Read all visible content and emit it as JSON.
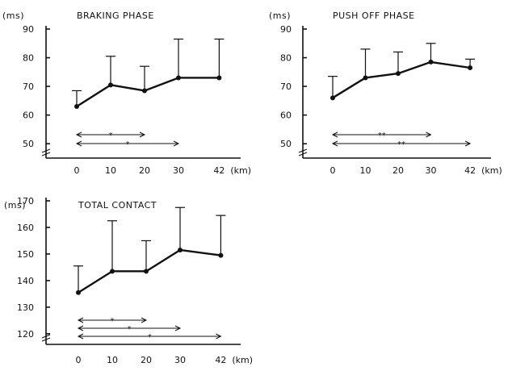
{
  "chart_data": [
    {
      "type": "line",
      "title": "BRAKING PHASE",
      "ylabel": "(ms)",
      "xunit": "(km)",
      "categories": [
        "0",
        "10",
        "20",
        "30",
        "42"
      ],
      "x": [
        0,
        10,
        20,
        30,
        42
      ],
      "values": [
        63,
        70.5,
        68.5,
        73,
        73
      ],
      "sd_upper": [
        68.5,
        80.5,
        77,
        86.5,
        86.5
      ],
      "ylim": [
        45,
        90
      ],
      "yticks": [
        "50",
        "60",
        "70",
        "80",
        "90"
      ],
      "significance": [
        {
          "from": "0",
          "to": "20",
          "mark": "*"
        },
        {
          "from": "0",
          "to": "30",
          "mark": "*"
        }
      ]
    },
    {
      "type": "line",
      "title": "PUSH OFF PHASE",
      "ylabel": "(ms)",
      "xunit": "(km)",
      "categories": [
        "0",
        "10",
        "20",
        "30",
        "42"
      ],
      "x": [
        0,
        10,
        20,
        30,
        42
      ],
      "values": [
        66,
        73,
        74.5,
        78.5,
        76.5
      ],
      "sd_upper": [
        73.5,
        83,
        82,
        85,
        79.5
      ],
      "ylim": [
        45,
        90
      ],
      "yticks": [
        "50",
        "60",
        "70",
        "80",
        "90"
      ],
      "significance": [
        {
          "from": "0",
          "to": "30",
          "mark": "**"
        },
        {
          "from": "0",
          "to": "42",
          "mark": "**"
        }
      ]
    },
    {
      "type": "line",
      "title": "TOTAL CONTACT",
      "ylabel": "(ms)",
      "xunit": "(km)",
      "categories": [
        "0",
        "10",
        "20",
        "30",
        "42"
      ],
      "x": [
        0,
        10,
        20,
        30,
        42
      ],
      "values": [
        135.5,
        143.5,
        143.5,
        151.5,
        149.5
      ],
      "sd_upper": [
        145.5,
        162.5,
        155,
        167.5,
        164.5
      ],
      "ylim": [
        116,
        170
      ],
      "yticks": [
        "120",
        "130",
        "140",
        "150",
        "160",
        "170"
      ],
      "significance": [
        {
          "from": "0",
          "to": "20",
          "mark": "*"
        },
        {
          "from": "0",
          "to": "30",
          "mark": "*"
        },
        {
          "from": "0",
          "to": "42",
          "mark": "*"
        }
      ]
    }
  ]
}
